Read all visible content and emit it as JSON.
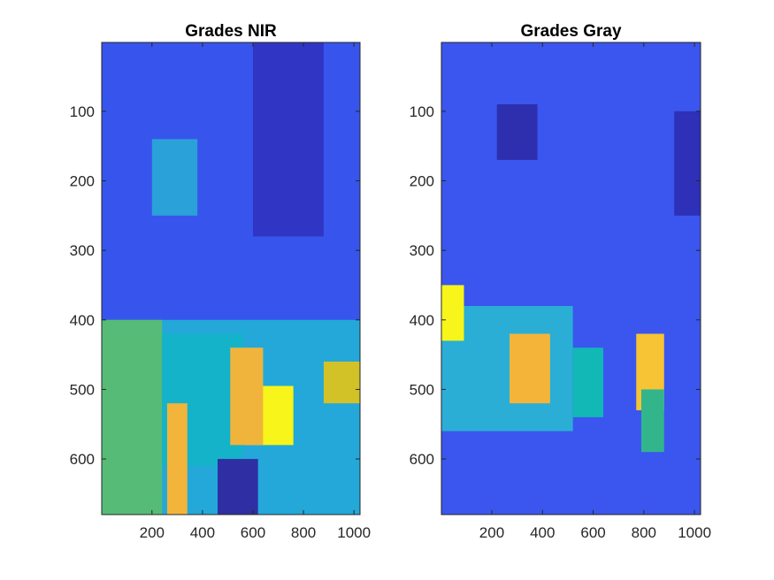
{
  "chart_data": [
    {
      "type": "heatmap",
      "title": "Grades NIR",
      "xlabel": "",
      "ylabel": "",
      "xlim": [
        1,
        1024
      ],
      "ylim": [
        680,
        1
      ],
      "xticks": [
        200,
        400,
        600,
        800,
        1000
      ],
      "yticks": [
        100,
        200,
        300,
        400,
        500,
        600
      ],
      "grid": false,
      "colormap": "parula",
      "background_color": "#3755ec",
      "regions": [
        {
          "name": "band-lower",
          "x": [
            1,
            1024
          ],
          "y": [
            400,
            680
          ],
          "color": "#23a8d9"
        },
        {
          "name": "band-left-green",
          "x": [
            1,
            240
          ],
          "y": [
            400,
            680
          ],
          "color": "#55bb77"
        },
        {
          "name": "center-cyan",
          "x": [
            240,
            560
          ],
          "y": [
            420,
            610
          ],
          "color": "#15b3c9"
        },
        {
          "name": "yellow-center",
          "x": [
            570,
            760
          ],
          "y": [
            495,
            580
          ],
          "color": "#f7f51a"
        },
        {
          "name": "orange-center",
          "x": [
            510,
            640
          ],
          "y": [
            440,
            580
          ],
          "color": "#f0b43c"
        },
        {
          "name": "orange-bottom",
          "x": [
            260,
            340
          ],
          "y": [
            520,
            680
          ],
          "color": "#f2b43a"
        },
        {
          "name": "mustard-right",
          "x": [
            880,
            1024
          ],
          "y": [
            460,
            520
          ],
          "color": "#d2c228"
        },
        {
          "name": "dark-bottom",
          "x": [
            460,
            620
          ],
          "y": [
            600,
            680
          ],
          "color": "#2f2fa3"
        },
        {
          "name": "cyan-upper",
          "x": [
            200,
            380
          ],
          "y": [
            140,
            250
          ],
          "color": "#2aa1d9"
        },
        {
          "name": "dark-top-right",
          "x": [
            600,
            880
          ],
          "y": [
            1,
            280
          ],
          "color": "#3135c4"
        }
      ]
    },
    {
      "type": "heatmap",
      "title": "Grades Gray",
      "xlabel": "",
      "ylabel": "",
      "xlim": [
        1,
        1024
      ],
      "ylim": [
        680,
        1
      ],
      "xticks": [
        200,
        400,
        600,
        800,
        1000
      ],
      "yticks": [
        100,
        200,
        300,
        400,
        500,
        600
      ],
      "grid": false,
      "colormap": "parula",
      "background_color": "#3a56ee",
      "regions": [
        {
          "name": "cyan-mid",
          "x": [
            1,
            520
          ],
          "y": [
            380,
            560
          ],
          "color": "#2aaed6"
        },
        {
          "name": "yellow-left",
          "x": [
            1,
            90
          ],
          "y": [
            350,
            430
          ],
          "color": "#f7f51a"
        },
        {
          "name": "orange-center",
          "x": [
            270,
            430
          ],
          "y": [
            420,
            520
          ],
          "color": "#f4b43a"
        },
        {
          "name": "orange-right",
          "x": [
            770,
            880
          ],
          "y": [
            420,
            530
          ],
          "color": "#f6c434"
        },
        {
          "name": "green-right",
          "x": [
            790,
            880
          ],
          "y": [
            500,
            590
          ],
          "color": "#33b58c"
        },
        {
          "name": "teal-center",
          "x": [
            520,
            640
          ],
          "y": [
            440,
            540
          ],
          "color": "#11b8b5"
        },
        {
          "name": "dark-upper-left",
          "x": [
            220,
            380
          ],
          "y": [
            90,
            170
          ],
          "color": "#2d2fae"
        },
        {
          "name": "dark-right",
          "x": [
            920,
            1024
          ],
          "y": [
            100,
            250
          ],
          "color": "#2e30b8"
        }
      ]
    }
  ]
}
